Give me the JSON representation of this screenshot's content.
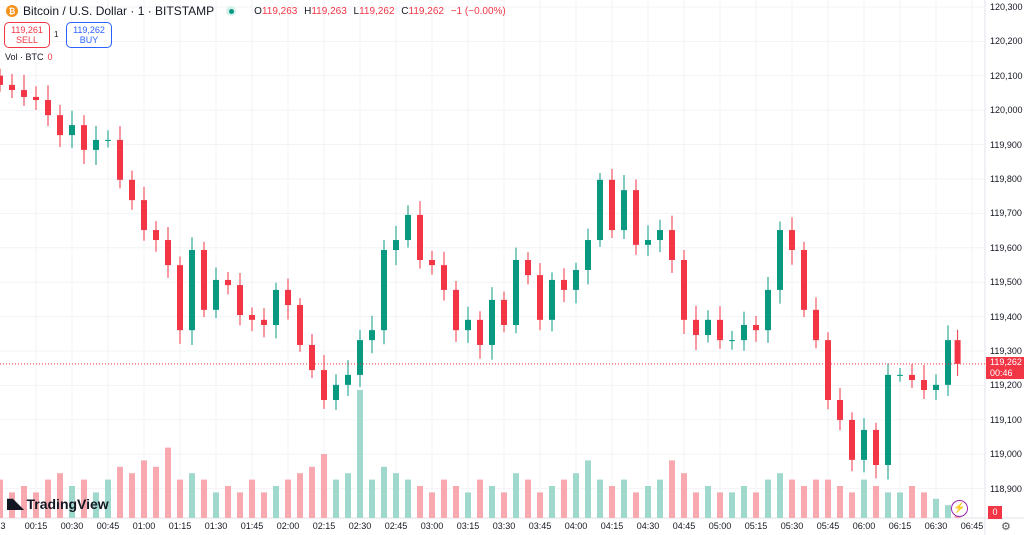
{
  "header": {
    "symbol_title": "Bitcoin / U.S. Dollar · 1 · BITSTAMP",
    "coin_icon": "bitcoin-icon",
    "ohlc": {
      "o_label": "O",
      "o": "119,263",
      "h_label": "H",
      "h": "119,263",
      "l_label": "L",
      "l": "119,262",
      "c_label": "C",
      "c": "119,262",
      "change": "−1 (−0.00%)"
    }
  },
  "trade": {
    "sell_price": "119,261",
    "sell_label": "SELL",
    "quantity": "1",
    "buy_price": "119,262",
    "buy_label": "BUY"
  },
  "volume_legend": {
    "label": "Vol · BTC",
    "value": "0"
  },
  "price_axis": {
    "ticks": [
      "120,300",
      "120,200",
      "120,100",
      "120,000",
      "119,900",
      "119,800",
      "119,700",
      "119,600",
      "119,500",
      "119,400",
      "119,300",
      "119,200",
      "119,100",
      "119,000",
      "118,900"
    ],
    "last_price": "119,262",
    "countdown": "00:46",
    "volume_value": "0"
  },
  "time_axis": {
    "ticks": [
      "3",
      "00:15",
      "00:30",
      "00:45",
      "01:00",
      "01:15",
      "01:30",
      "01:45",
      "02:00",
      "02:15",
      "02:30",
      "02:45",
      "03:00",
      "03:15",
      "03:30",
      "03:45",
      "04:00",
      "04:15",
      "04:30",
      "04:45",
      "05:00",
      "05:15",
      "05:30",
      "05:45",
      "06:00",
      "06:15",
      "06:30",
      "06:45"
    ]
  },
  "branding": {
    "logo_text": "TradingView"
  },
  "colors": {
    "up": "#089981",
    "down": "#f23645",
    "up_volume": "#9fd8cd",
    "down_volume": "#f7a9af",
    "grid": "#f2f3f5",
    "last_price_line": "#f23645"
  },
  "chart_data": {
    "type": "candlestick",
    "interval_shown": "1",
    "ylim": [
      118880,
      120320
    ],
    "grid": true,
    "times": [
      "00:00",
      "00:05",
      "00:10",
      "00:15",
      "00:20",
      "00:25",
      "00:30",
      "00:35",
      "00:40",
      "00:45",
      "00:50",
      "00:55",
      "01:00",
      "01:05",
      "01:10",
      "01:15",
      "01:20",
      "01:25",
      "01:30",
      "01:35",
      "01:40",
      "01:45",
      "01:50",
      "01:55",
      "02:00",
      "02:05",
      "02:10",
      "02:15",
      "02:20",
      "02:25",
      "02:30",
      "02:35",
      "02:40",
      "02:45",
      "02:50",
      "02:55",
      "03:00",
      "03:05",
      "03:10",
      "03:15",
      "03:20",
      "03:25",
      "03:30",
      "03:35",
      "03:40",
      "03:45",
      "03:50",
      "03:55",
      "04:00",
      "04:05",
      "04:10",
      "04:15",
      "04:20",
      "04:25",
      "04:30",
      "04:35",
      "04:40",
      "04:45",
      "04:50",
      "04:55",
      "05:00",
      "05:05",
      "05:10",
      "05:15",
      "05:20",
      "05:25",
      "05:30",
      "05:35",
      "05:40",
      "05:45",
      "05:50",
      "05:55",
      "06:00",
      "06:05",
      "06:10",
      "06:15",
      "06:20",
      "06:25",
      "06:30",
      "06:35",
      "06:39"
    ],
    "close": [
      120073,
      120058,
      120038,
      120029,
      119985,
      119927,
      119956,
      119884,
      119913,
      119913,
      119797,
      119738,
      119651,
      119622,
      119549,
      119360,
      119593,
      119419,
      119506,
      119491,
      119404,
      119390,
      119375,
      119477,
      119433,
      119317,
      119244,
      119157,
      119201,
      119230,
      119331,
      119360,
      119593,
      119622,
      119695,
      119564,
      119549,
      119477,
      119360,
      119390,
      119317,
      119448,
      119375,
      119564,
      119520,
      119390,
      119506,
      119477,
      119535,
      119622,
      119797,
      119651,
      119767,
      119608,
      119622,
      119651,
      119564,
      119390,
      119346,
      119390,
      119331,
      119331,
      119375,
      119360,
      119477,
      119651,
      119593,
      119419,
      119331,
      119157,
      119099,
      118983,
      119070,
      118968,
      119230,
      119230,
      119215,
      119186,
      119201,
      119331,
      119262
    ],
    "volume_relative": [
      0.3,
      0.2,
      0.25,
      0.2,
      0.3,
      0.35,
      0.25,
      0.3,
      0.2,
      0.3,
      0.4,
      0.35,
      0.45,
      0.4,
      0.55,
      0.3,
      0.35,
      0.3,
      0.2,
      0.25,
      0.2,
      0.3,
      0.2,
      0.25,
      0.3,
      0.35,
      0.4,
      0.5,
      0.3,
      0.35,
      1.0,
      0.3,
      0.4,
      0.35,
      0.3,
      0.25,
      0.2,
      0.3,
      0.25,
      0.2,
      0.3,
      0.25,
      0.2,
      0.35,
      0.3,
      0.2,
      0.25,
      0.3,
      0.35,
      0.45,
      0.3,
      0.25,
      0.3,
      0.2,
      0.25,
      0.3,
      0.45,
      0.35,
      0.2,
      0.25,
      0.2,
      0.2,
      0.25,
      0.2,
      0.3,
      0.35,
      0.3,
      0.25,
      0.3,
      0.3,
      0.25,
      0.2,
      0.3,
      0.25,
      0.2,
      0.2,
      0.25,
      0.2,
      0.15,
      0.1,
      0.05
    ]
  }
}
